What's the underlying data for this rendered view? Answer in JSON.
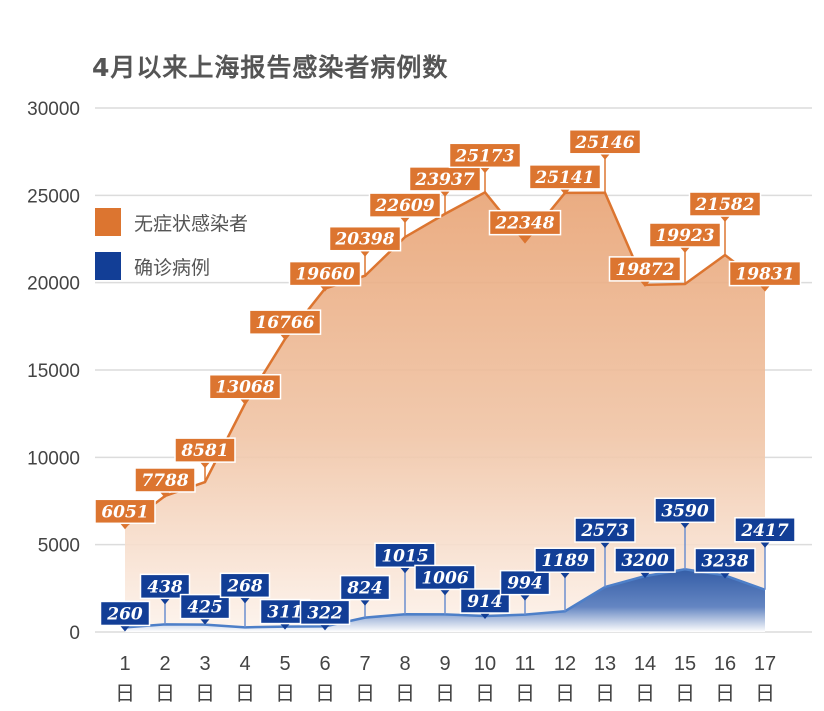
{
  "chart_data": {
    "type": "area",
    "title": "4月以来上海报告感染者病例数",
    "categories": [
      "1\n日",
      "2\n日",
      "3\n日",
      "4\n日",
      "5\n日",
      "6\n日",
      "7\n日",
      "8\n日",
      "9\n日",
      "10\n日",
      "11\n日",
      "12\n日",
      "13\n日",
      "14\n日",
      "15\n日",
      "16\n日",
      "17\n日"
    ],
    "x_numbers": [
      "1",
      "2",
      "3",
      "4",
      "5",
      "6",
      "7",
      "8",
      "9",
      "10",
      "11",
      "12",
      "13",
      "14",
      "15",
      "16",
      "17"
    ],
    "x_unit": "日",
    "ylim": [
      0,
      30000
    ],
    "yticks": [
      0,
      5000,
      10000,
      15000,
      20000,
      25000,
      30000
    ],
    "grid": true,
    "legend_position": "left",
    "series": [
      {
        "name": "无症状感染者",
        "color": "#dc7530",
        "values": [
          6051,
          7788,
          8581,
          13068,
          16766,
          19660,
          20398,
          22609,
          23937,
          25173,
          22348,
          25141,
          25146,
          19872,
          19923,
          21582,
          19831
        ]
      },
      {
        "name": "确诊病例",
        "color": "#123e96",
        "values": [
          260,
          438,
          425,
          268,
          311,
          322,
          824,
          1015,
          1006,
          914,
          994,
          1189,
          2573,
          3200,
          3590,
          3238,
          2417
        ]
      }
    ]
  }
}
